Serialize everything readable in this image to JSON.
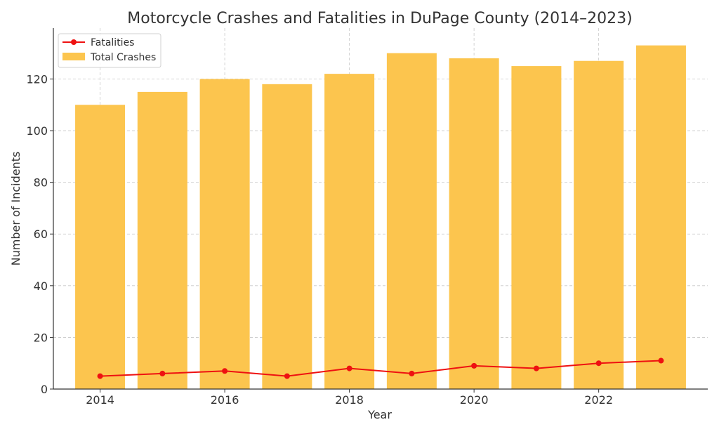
{
  "chart_data": {
    "type": "bar",
    "title": "Motorcycle Crashes and Fatalities in DuPage County (2014–2023)",
    "xlabel": "Year",
    "ylabel": "Number of Incidents",
    "categories": [
      2014,
      2015,
      2016,
      2017,
      2018,
      2019,
      2020,
      2021,
      2022,
      2023
    ],
    "x_ticks": [
      2014,
      2016,
      2018,
      2020,
      2022
    ],
    "y_ticks": [
      0,
      20,
      40,
      60,
      80,
      100,
      120
    ],
    "xlim": [
      2013.25,
      2023.75
    ],
    "ylim": [
      0,
      139.7
    ],
    "grid": true,
    "legend_position": "top-left",
    "series": [
      {
        "name": "Total Crashes",
        "type": "bar",
        "color": "#fcc54e",
        "values": [
          110,
          115,
          120,
          118,
          122,
          130,
          128,
          125,
          127,
          133
        ]
      },
      {
        "name": "Fatalities",
        "type": "line",
        "color": "#ee1111",
        "values": [
          5,
          6,
          7,
          5,
          8,
          6,
          9,
          8,
          10,
          11
        ]
      }
    ]
  }
}
